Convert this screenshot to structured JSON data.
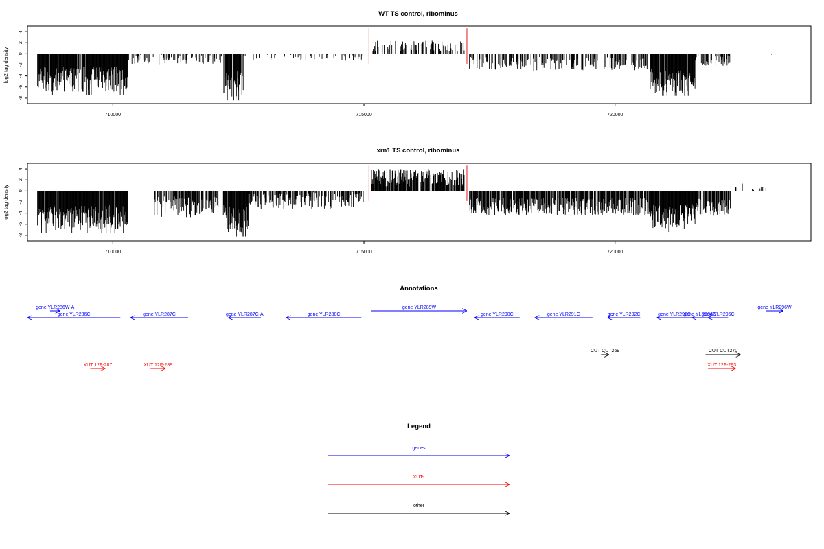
{
  "chart_data": [
    {
      "type": "bar",
      "title": "WT TS control, ribominus",
      "ylabel": "log2 tag density",
      "xlabel": "",
      "xlim": [
        708300,
        723900
      ],
      "ylim": [
        -9,
        5
      ],
      "xticks": [
        710000,
        715000,
        720000
      ],
      "xtick_labels": [
        "710000",
        "715000",
        "720000"
      ],
      "yticks": [
        -8,
        -6,
        -4,
        -2,
        0,
        2,
        4
      ],
      "ytick_labels": [
        "-8",
        "-6",
        "-4",
        "-2",
        "0",
        "2",
        "4"
      ],
      "baseline_range": [
        708500,
        723400
      ],
      "marker_lines": {
        "x": [
          715100,
          717050
        ],
        "color": "#e41a1c"
      },
      "segments": [
        {
          "x0": 708500,
          "x1": 710300,
          "amp": -4.6,
          "var": 1.4,
          "density": 0.95
        },
        {
          "x0": 710300,
          "x1": 712200,
          "amp": -1.0,
          "var": 0.6,
          "density": 0.35
        },
        {
          "x0": 712200,
          "x1": 712600,
          "amp": -5.2,
          "var": 1.6,
          "density": 0.95
        },
        {
          "x0": 712600,
          "x1": 715000,
          "amp": -0.6,
          "var": 0.4,
          "density": 0.15
        },
        {
          "x0": 715150,
          "x1": 717000,
          "amp": 1.4,
          "var": 0.6,
          "density": 0.35
        },
        {
          "x0": 717100,
          "x1": 720700,
          "amp": -1.8,
          "var": 0.8,
          "density": 0.4
        },
        {
          "x0": 720700,
          "x1": 721600,
          "amp": -4.8,
          "var": 1.4,
          "density": 0.95
        },
        {
          "x0": 721600,
          "x1": 722300,
          "amp": -1.2,
          "var": 0.6,
          "density": 0.5
        },
        {
          "x0": 722300,
          "x1": 723400,
          "amp": 0.0,
          "var": 0.2,
          "density": 0.05
        }
      ]
    },
    {
      "type": "bar",
      "title": "xrn1 TS control, ribominus",
      "ylabel": "log2 tag density",
      "xlabel": "",
      "xlim": [
        708300,
        723900
      ],
      "ylim": [
        -9,
        5
      ],
      "xticks": [
        710000,
        715000,
        720000
      ],
      "xtick_labels": [
        "710000",
        "715000",
        "720000"
      ],
      "yticks": [
        -8,
        -6,
        -4,
        -2,
        0,
        2,
        4
      ],
      "ytick_labels": [
        "-8",
        "-6",
        "-4",
        "-2",
        "0",
        "2",
        "4"
      ],
      "baseline_range": [
        708500,
        723400
      ],
      "marker_lines": {
        "x": [
          715100,
          717050
        ],
        "color": "#e41a1c"
      },
      "segments": [
        {
          "x0": 708500,
          "x1": 710300,
          "amp": -4.8,
          "var": 1.4,
          "density": 0.95
        },
        {
          "x0": 710800,
          "x1": 712100,
          "amp": -2.8,
          "var": 1.2,
          "density": 0.7
        },
        {
          "x0": 712200,
          "x1": 712700,
          "amp": -5.0,
          "var": 1.6,
          "density": 0.95
        },
        {
          "x0": 712700,
          "x1": 715000,
          "amp": -1.6,
          "var": 1.0,
          "density": 0.6
        },
        {
          "x0": 715150,
          "x1": 717000,
          "amp": 2.4,
          "var": 1.0,
          "density": 0.85
        },
        {
          "x0": 717100,
          "x1": 720700,
          "amp": -2.8,
          "var": 1.0,
          "density": 0.8
        },
        {
          "x0": 720700,
          "x1": 721600,
          "amp": -4.6,
          "var": 1.4,
          "density": 0.95
        },
        {
          "x0": 721600,
          "x1": 722300,
          "amp": -3.0,
          "var": 1.0,
          "density": 0.8
        },
        {
          "x0": 722300,
          "x1": 723400,
          "amp": 0.6,
          "var": 0.5,
          "density": 0.1
        }
      ]
    }
  ],
  "annotations": {
    "title": "Annotations",
    "genes": [
      {
        "label": "gene YLR286W-A",
        "x0": 708750,
        "x1": 708950,
        "dir": "right",
        "row": 0
      },
      {
        "label": "gene YLR286C",
        "x0": 708300,
        "x1": 710150,
        "dir": "left",
        "row": 1
      },
      {
        "label": "gene YLR287C",
        "x0": 710350,
        "x1": 711500,
        "dir": "left",
        "row": 1
      },
      {
        "label": "gene YLR287C-A",
        "x0": 712300,
        "x1": 712950,
        "dir": "left",
        "row": 1
      },
      {
        "label": "gene YLR288C",
        "x0": 713450,
        "x1": 714950,
        "dir": "left",
        "row": 1
      },
      {
        "label": "gene YLR289W",
        "x0": 715150,
        "x1": 717050,
        "dir": "right",
        "row": 0
      },
      {
        "label": "gene YLR290C",
        "x0": 717200,
        "x1": 718100,
        "dir": "left",
        "row": 1
      },
      {
        "label": "gene YLR291C",
        "x0": 718400,
        "x1": 719550,
        "dir": "left",
        "row": 1
      },
      {
        "label": "gene YLR292C",
        "x0": 719850,
        "x1": 720500,
        "dir": "left",
        "row": 1
      },
      {
        "label": "gene YLR293C",
        "x0": 720830,
        "x1": 721530,
        "dir": "left",
        "row": 1
      },
      {
        "label": "gene YLR294C",
        "x0": 721530,
        "x1": 721850,
        "dir": "left",
        "row": 1
      },
      {
        "label": "gene YLR295C",
        "x0": 721850,
        "x1": 722250,
        "dir": "left",
        "row": 1
      },
      {
        "label": "gene YLR296W",
        "x0": 723000,
        "x1": 723350,
        "dir": "right",
        "row": 0
      }
    ],
    "cuts": [
      {
        "label": "CUT CUT269",
        "x0": 719720,
        "x1": 719880,
        "dir": "right"
      },
      {
        "label": "CUT CUT270",
        "x0": 721800,
        "x1": 722500,
        "dir": "right"
      }
    ],
    "xuts": [
      {
        "label": "XUT 12F-287",
        "x0": 709550,
        "x1": 709850,
        "dir": "right"
      },
      {
        "label": "XUT 12F-289",
        "x0": 710750,
        "x1": 711050,
        "dir": "right"
      },
      {
        "label": "XUT 12F-293",
        "x0": 721850,
        "x1": 722400,
        "dir": "right"
      }
    ]
  },
  "legend": {
    "title": "Legend",
    "items": [
      {
        "label": "genes",
        "color": "#0000ff"
      },
      {
        "label": "XUTs",
        "color": "#ff0000"
      },
      {
        "label": "other",
        "color": "#000000"
      }
    ]
  },
  "colors": {
    "gene": "#0000ff",
    "xut": "#ff0000",
    "cut": "#000000",
    "marker": "#e41a1c",
    "axis": "#000000"
  }
}
